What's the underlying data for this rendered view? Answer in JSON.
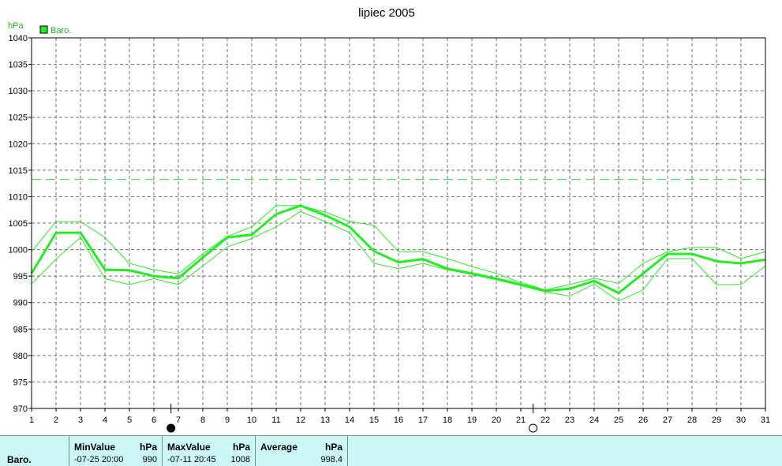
{
  "chart_data": {
    "type": "line",
    "title": "lipiec 2005",
    "ylabel": "hPa",
    "ylim": [
      970,
      1040
    ],
    "yticks": [
      970,
      975,
      980,
      985,
      990,
      995,
      1000,
      1005,
      1010,
      1015,
      1020,
      1025,
      1030,
      1035,
      1040
    ],
    "x": [
      1,
      2,
      3,
      4,
      5,
      6,
      7,
      8,
      9,
      10,
      11,
      12,
      13,
      14,
      15,
      16,
      17,
      18,
      19,
      20,
      21,
      22,
      23,
      24,
      25,
      26,
      27,
      28,
      29,
      30,
      31
    ],
    "xlim": [
      1,
      31
    ],
    "grid": true,
    "legend": [
      "Baro."
    ],
    "reference_line": 1013.25,
    "series": [
      {
        "name": "Baro.",
        "role": "average",
        "values": [
          995.5,
          1003.2,
          1003.2,
          996.2,
          996.1,
          995.0,
          994.6,
          998.5,
          1002.3,
          1002.8,
          1006.7,
          1008.3,
          1006.5,
          1004.3,
          999.7,
          997.6,
          998.2,
          996.4,
          995.5,
          994.5,
          993.4,
          992.2,
          992.6,
          994.1,
          991.8,
          995.5,
          999.2,
          999.2,
          997.8,
          997.4,
          998.1
        ]
      },
      {
        "role": "max",
        "values": [
          999.6,
          1005.3,
          1005.3,
          1002.3,
          997.4,
          996.2,
          995.4,
          999.2,
          1002.5,
          1004.3,
          1008.3,
          1008.3,
          1007.1,
          1005.3,
          1004.6,
          999.6,
          999.6,
          998.3,
          996.8,
          995.5,
          993.8,
          992.4,
          993.4,
          994.6,
          993.6,
          997.4,
          999.6,
          1000.4,
          1000.4,
          998.3,
          999.6
        ]
      },
      {
        "role": "min",
        "values": [
          993.5,
          998.2,
          1002.3,
          994.5,
          993.4,
          994.5,
          993.4,
          996.9,
          1000.5,
          1002.1,
          1004.3,
          1007.2,
          1005.3,
          1003.2,
          997.4,
          996.4,
          997.4,
          996.2,
          995.3,
          994.3,
          993.2,
          992.0,
          991.2,
          993.5,
          990.3,
          992.4,
          998.3,
          998.3,
          993.4,
          993.4,
          996.9
        ]
      }
    ],
    "phase_markers": [
      {
        "day": 6.7,
        "phase": "full"
      },
      {
        "day": 21.5,
        "phase": "new"
      }
    ],
    "colors": {
      "line": "#22ee22",
      "grid": "#707070",
      "axis": "#000000",
      "legend_fill": "#22ee22"
    }
  },
  "stats": {
    "row_label": "Baro.",
    "min": {
      "header": "MinValue",
      "unit": "hPa",
      "when": "-07-25  20:00",
      "value": "990"
    },
    "max": {
      "header": "MaxValue",
      "unit": "hPa",
      "when": "-07-11  20:45",
      "value": "1008"
    },
    "avg": {
      "header": "Average",
      "unit": "hPa",
      "value": "998.4"
    }
  }
}
